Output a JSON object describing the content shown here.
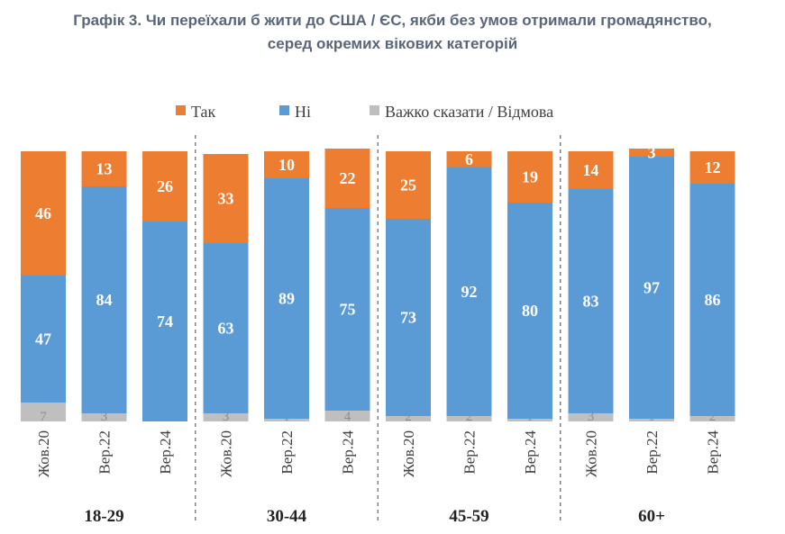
{
  "title": {
    "line1": "Графік 3. Чи переїхали б жити до США / ЄС, якби без умов отримали громадянство,",
    "line2": "серед окремих вікових категорій"
  },
  "chart_data": {
    "type": "bar",
    "stacked": true,
    "legend_position": "top",
    "grid": false,
    "ylim": [
      0,
      100
    ],
    "groups": [
      {
        "label": "18-29",
        "categories": [
          "Жов.20",
          "Вер.22",
          "Вер.24"
        ]
      },
      {
        "label": "30-44",
        "categories": [
          "Жов.20",
          "Вер.22",
          "Вер.24"
        ]
      },
      {
        "label": "45-59",
        "categories": [
          "Жов.20",
          "Вер.22",
          "Вер.24"
        ]
      },
      {
        "label": "60+",
        "categories": [
          "Жов.20",
          "Вер.22",
          "Вер.24"
        ]
      }
    ],
    "categories": [
      "Жов.20",
      "Вер.22",
      "Вер.24",
      "Жов.20",
      "Вер.22",
      "Вер.24",
      "Жов.20",
      "Вер.22",
      "Вер.24",
      "Жов.20",
      "Вер.22",
      "Вер.24"
    ],
    "series": [
      {
        "name": "Так",
        "color": "#ed7d31",
        "values": [
          46,
          13,
          26,
          33,
          10,
          22,
          25,
          6,
          19,
          14,
          3,
          12
        ]
      },
      {
        "name": "Ні",
        "color": "#5b9bd5",
        "values": [
          47,
          84,
          74,
          63,
          89,
          75,
          73,
          92,
          80,
          83,
          97,
          86
        ]
      },
      {
        "name": "Важко сказати / Відмова",
        "color": "#bfbfbf",
        "values": [
          7,
          3,
          0,
          3,
          1,
          4,
          2,
          2,
          1,
          3,
          1,
          2
        ]
      }
    ]
  }
}
